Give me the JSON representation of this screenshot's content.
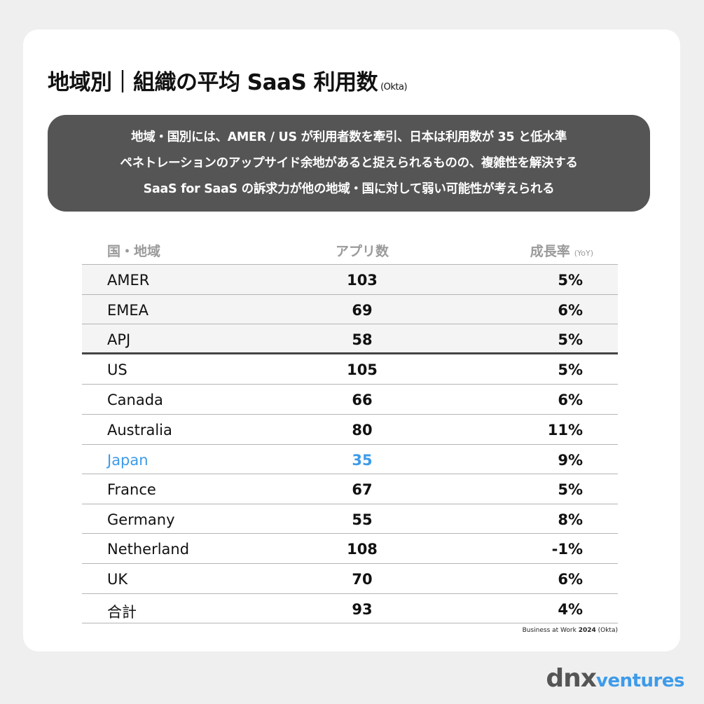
{
  "title": {
    "main": "地域別｜組織の平均 SaaS 利用数",
    "source": "(Okta)"
  },
  "summary": {
    "lines": [
      "地域・国別には、AMER / US が利用者数を牽引、日本は利用数が 35 と低水準",
      "ペネトレーションのアップサイド余地があると捉えられるものの、複雑性を解決する",
      "SaaS for SaaS の訴求力が他の地域・国に対して弱い可能性が考えられる"
    ]
  },
  "header": {
    "col1": "国・地域",
    "col2": "アプリ数",
    "col3": "成長率",
    "col3_sub": "(YoY)"
  },
  "chart_data": {
    "type": "table",
    "columns": [
      "国・地域",
      "アプリ数",
      "成長率 (YoY)"
    ],
    "rows": [
      {
        "region": "AMER",
        "apps": "103",
        "growth": "5%"
      },
      {
        "region": "EMEA",
        "apps": "69",
        "growth": "6%"
      },
      {
        "region": "APJ",
        "apps": "58",
        "growth": "5%"
      },
      {
        "region": "US",
        "apps": "105",
        "growth": "5%"
      },
      {
        "region": "Canada",
        "apps": "66",
        "growth": "6%"
      },
      {
        "region": "Australia",
        "apps": "80",
        "growth": "11%"
      },
      {
        "region": "Japan",
        "apps": "35",
        "growth": "9%"
      },
      {
        "region": "France",
        "apps": "67",
        "growth": "5%"
      },
      {
        "region": "Germany",
        "apps": "55",
        "growth": "8%"
      },
      {
        "region": "Netherland",
        "apps": "108",
        "growth": "-1%"
      },
      {
        "region": "UK",
        "apps": "70",
        "growth": "6%"
      },
      {
        "region": "合計",
        "apps": "93",
        "growth": "4%"
      }
    ],
    "highlight_row": "Japan",
    "highlight_color": "#3d9be9"
  },
  "footnote": {
    "prefix": "Business at Work ",
    "year": "2024",
    "suffix": " (Okta)"
  },
  "logo": {
    "part1": "dnx",
    "part2": "ventures",
    "accent_color": "#3d9be9"
  }
}
